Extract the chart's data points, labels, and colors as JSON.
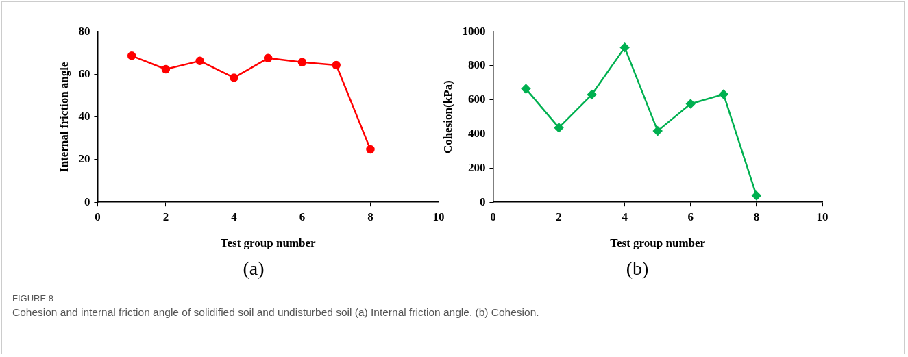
{
  "chart_data": [
    {
      "type": "line",
      "xlabel": "Test group number",
      "ylabel": "Internal friction angle",
      "x": [
        1,
        2,
        3,
        4,
        5,
        6,
        7,
        8
      ],
      "series": [
        {
          "color": "#ff0000",
          "values": [
            68.7,
            62.4,
            66.3,
            58.4,
            67.6,
            65.7,
            64.3,
            24.8
          ]
        }
      ],
      "xlim": [
        0,
        10
      ],
      "xticks": [
        0,
        2,
        4,
        6,
        8,
        10
      ],
      "ylim": [
        0,
        80
      ],
      "yticks": [
        0,
        20,
        40,
        60,
        80
      ],
      "grid": false,
      "legend": false,
      "marker": "circle",
      "line_style": "solid",
      "annotations": [
        "(a)",
        "FIGURE 8",
        "Cohesion and internal friction angle of solidified soil and undisturbed soil (a) Internal friction angle. (b) Cohesion."
      ]
    },
    {
      "type": "line",
      "xlabel": "Test group number",
      "ylabel": "Cohesion(kPa)",
      "x": [
        1,
        2,
        3,
        4,
        5,
        6,
        7,
        8
      ],
      "series": [
        {
          "color": "#00b050",
          "values": [
            665,
            437,
            631,
            907,
            418,
            577,
            633,
            39
          ]
        }
      ],
      "xlim": [
        0,
        10
      ],
      "xticks": [
        0,
        2,
        4,
        6,
        8,
        10
      ],
      "ylim": [
        0,
        1000
      ],
      "yticks": [
        0,
        200,
        400,
        600,
        800,
        1000
      ],
      "grid": false,
      "legend": false,
      "marker": "diamond",
      "line_style": "solid",
      "annotations": [
        "(b)"
      ]
    }
  ]
}
